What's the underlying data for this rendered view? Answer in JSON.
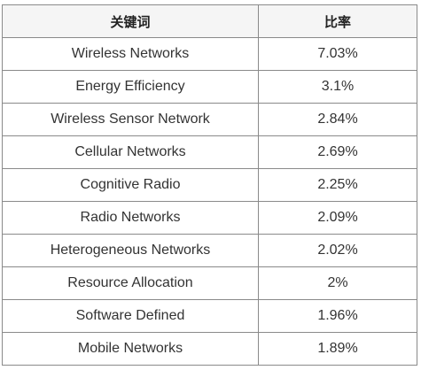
{
  "table": {
    "headers": [
      "关键词",
      "比率"
    ],
    "rows": [
      {
        "keyword": "Wireless Networks",
        "ratio": "7.03%"
      },
      {
        "keyword": "Energy Efficiency",
        "ratio": "3.1%"
      },
      {
        "keyword": "Wireless Sensor Network",
        "ratio": "2.84%"
      },
      {
        "keyword": "Cellular Networks",
        "ratio": "2.69%"
      },
      {
        "keyword": "Cognitive Radio",
        "ratio": "2.25%"
      },
      {
        "keyword": "Radio Networks",
        "ratio": "2.09%"
      },
      {
        "keyword": "Heterogeneous Networks",
        "ratio": "2.02%"
      },
      {
        "keyword": "Resource Allocation",
        "ratio": "2%"
      },
      {
        "keyword": "Software Defined",
        "ratio": "1.96%"
      },
      {
        "keyword": "Mobile Networks",
        "ratio": "1.89%"
      }
    ]
  }
}
